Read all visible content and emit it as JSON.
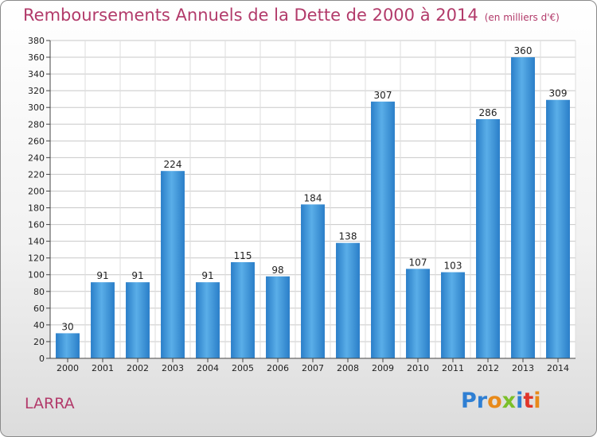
{
  "chart_data": {
    "type": "bar",
    "title": "Remboursements Annuels de la Dette de 2000 à 2014",
    "unit": "(en milliers d'€)",
    "categories": [
      "2000",
      "2001",
      "2002",
      "2003",
      "2004",
      "2005",
      "2006",
      "2007",
      "2008",
      "2009",
      "2010",
      "2011",
      "2012",
      "2013",
      "2014"
    ],
    "values": [
      30,
      91,
      91,
      224,
      91,
      115,
      98,
      184,
      138,
      307,
      107,
      103,
      286,
      360,
      309
    ],
    "ylim": [
      0,
      380
    ],
    "ytick_step": 20,
    "grid": true,
    "bar_color": "#3a8fd8"
  },
  "commune": "LARRA",
  "logo": {
    "parts": [
      "Pr",
      "o",
      "x",
      "i",
      "t",
      "i"
    ]
  }
}
